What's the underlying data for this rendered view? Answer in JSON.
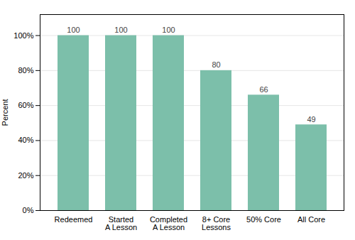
{
  "chart_data": {
    "type": "bar",
    "categories": [
      "Redeemed",
      "Started\nA Lesson",
      "Completed\nA Lesson",
      "8+ Core\nLessons",
      "50% Core",
      "All Core"
    ],
    "values": [
      100,
      100,
      100,
      80,
      66,
      49
    ],
    "color": "#7cbfaa",
    "ylabel": "Percent",
    "ylim": [
      0,
      112
    ],
    "yticks": [
      {
        "value": 0,
        "label": "0%"
      },
      {
        "value": 20,
        "label": "20%"
      },
      {
        "value": 40,
        "label": "40%"
      },
      {
        "value": 60,
        "label": "60%"
      },
      {
        "value": 80,
        "label": "80%"
      },
      {
        "value": 100,
        "label": "100%"
      }
    ],
    "grid": true,
    "data_labels": true
  }
}
